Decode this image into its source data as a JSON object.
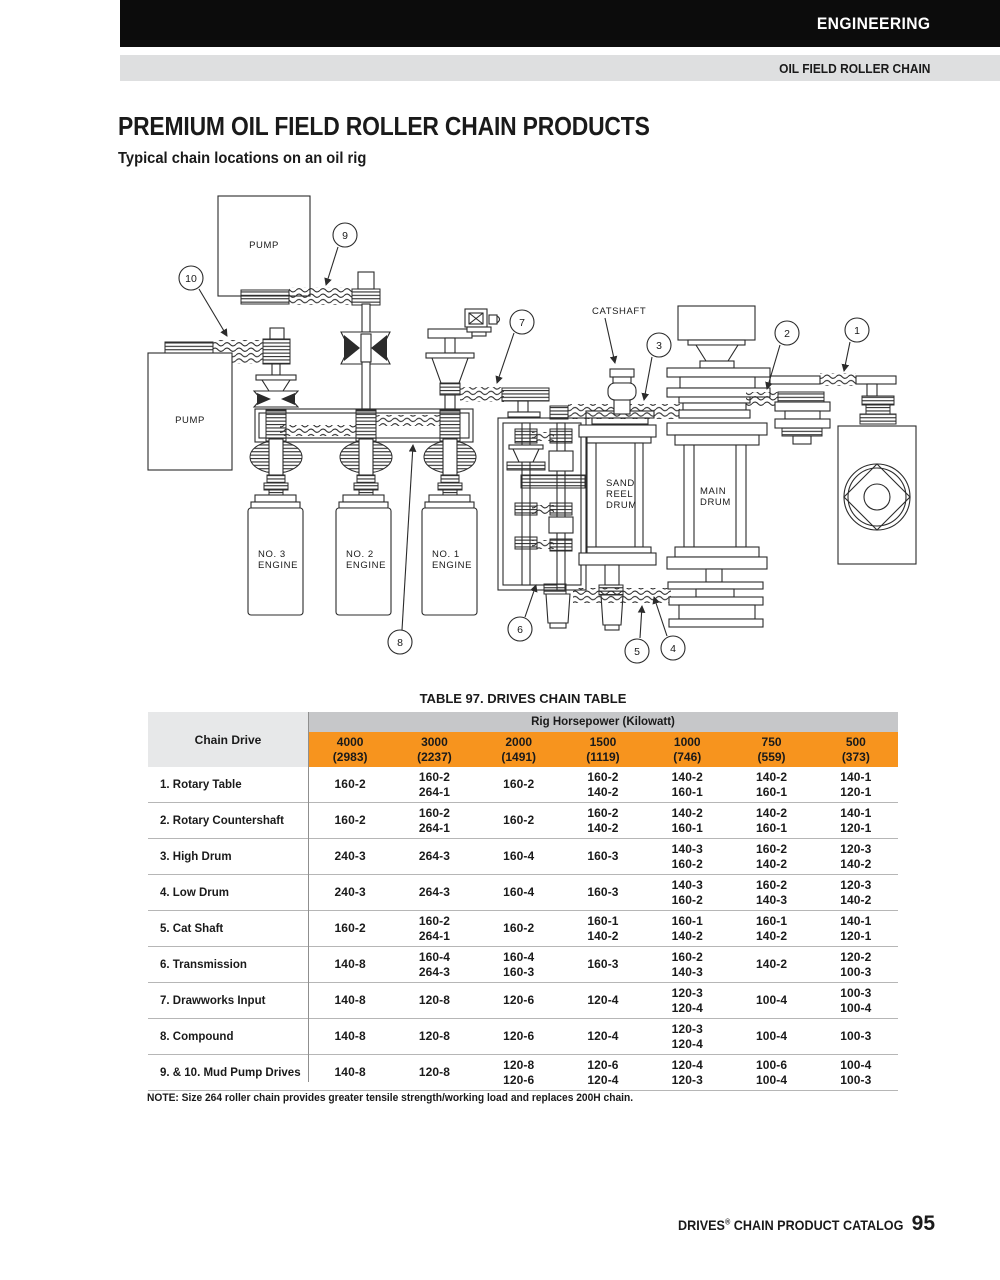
{
  "header": {
    "band1": "ENGINEERING",
    "band2": "OIL FIELD ROLLER CHAIN"
  },
  "page": {
    "title": "PREMIUM OIL FIELD ROLLER CHAIN PRODUCTS",
    "subtitle": "Typical chain locations on an oil rig"
  },
  "diagram": {
    "pump_top": "PUMP",
    "pump_left": "PUMP",
    "catshaft": "CATSHAFT",
    "sand_reel": [
      "SAND",
      "REEL",
      "DRUM"
    ],
    "main_drum": [
      "MAIN",
      "DRUM"
    ],
    "engine_3": [
      "NO. 3",
      "ENGINE"
    ],
    "engine_2": [
      "NO. 2",
      "ENGINE"
    ],
    "engine_1": [
      "NO. 1",
      "ENGINE"
    ],
    "callouts": [
      "1",
      "2",
      "3",
      "4",
      "5",
      "6",
      "7",
      "8",
      "9",
      "10"
    ]
  },
  "table": {
    "title": "TABLE 97. DRIVES CHAIN TABLE",
    "col1_header": "Chain Drive",
    "span_header": "Rig Horsepower (Kilowatt)",
    "columns": [
      {
        "hp": "4000",
        "kw": "(2983)"
      },
      {
        "hp": "3000",
        "kw": "(2237)"
      },
      {
        "hp": "2000",
        "kw": "(1491)"
      },
      {
        "hp": "1500",
        "kw": "(1119)"
      },
      {
        "hp": "1000",
        "kw": "(746)"
      },
      {
        "hp": "750",
        "kw": "(559)"
      },
      {
        "hp": "500",
        "kw": "(373)"
      }
    ],
    "rows": [
      {
        "label": "1. Rotary Table",
        "cells": [
          "160-2",
          "160-2\n264-1",
          "160-2",
          "160-2\n140-2",
          "140-2\n160-1",
          "140-2\n160-1",
          "140-1\n120-1"
        ]
      },
      {
        "label": "2. Rotary Countershaft",
        "cells": [
          "160-2",
          "160-2\n264-1",
          "160-2",
          "160-2\n140-2",
          "140-2\n160-1",
          "140-2\n160-1",
          "140-1\n120-1"
        ]
      },
      {
        "label": "3. High Drum",
        "cells": [
          "240-3",
          "264-3",
          "160-4",
          "160-3",
          "140-3\n160-2",
          "160-2\n140-2",
          "120-3\n140-2"
        ]
      },
      {
        "label": "4. Low Drum",
        "cells": [
          "240-3",
          "264-3",
          "160-4",
          "160-3",
          "140-3\n160-2",
          "160-2\n140-3",
          "120-3\n140-2"
        ]
      },
      {
        "label": "5. Cat Shaft",
        "cells": [
          "160-2",
          "160-2\n264-1",
          "160-2",
          "160-1\n140-2",
          "160-1\n140-2",
          "160-1\n140-2",
          "140-1\n120-1"
        ]
      },
      {
        "label": "6. Transmission",
        "cells": [
          "140-8",
          "160-4\n264-3",
          "160-4\n160-3",
          "160-3",
          "160-2\n140-3",
          "140-2",
          "120-2\n100-3"
        ]
      },
      {
        "label": "7. Drawworks Input",
        "cells": [
          "140-8",
          "120-8",
          "120-6",
          "120-4",
          "120-3\n120-4",
          "100-4",
          "100-3\n100-4"
        ]
      },
      {
        "label": "8. Compound",
        "cells": [
          "140-8",
          "120-8",
          "120-6",
          "120-4",
          "120-3\n120-4",
          "100-4",
          "100-3"
        ]
      },
      {
        "label": "9. & 10. Mud Pump Drives",
        "cells": [
          "140-8",
          "120-8",
          "120-8\n120-6",
          "120-6\n120-4",
          "120-4\n120-3",
          "100-6\n100-4",
          "100-4\n100-3"
        ]
      }
    ],
    "note": "NOTE: Size 264 roller chain provides greater tensile strength/working load and replaces 200H chain."
  },
  "footer": {
    "brand": "DRIVES",
    "reg": "®",
    "rest": " CHAIN PRODUCT CATALOG",
    "page_number": "95"
  },
  "colors": {
    "accent_orange": "#F7941E",
    "hp_band_gray": "#C6C7C9",
    "chain_drive_gray": "#E7E8E9",
    "header_black": "#0C0C0C",
    "subheader_gray": "#DEDFE0"
  }
}
